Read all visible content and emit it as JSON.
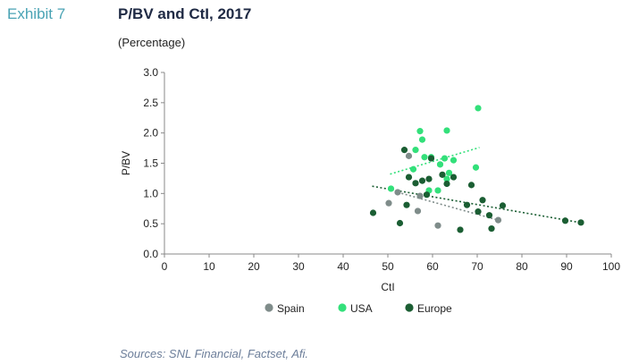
{
  "exhibit": "Exhibit 7",
  "title": "P/BV and CtI, 2017",
  "subtitle": "(Percentage)",
  "sources": "Sources: SNL Financial, Factset, Afi.",
  "chart_data": {
    "type": "scatter",
    "xlabel": "CtI",
    "ylabel": "P/BV",
    "xlim": [
      0,
      100
    ],
    "ylim": [
      0,
      3.0
    ],
    "xticks": [
      "0",
      "10",
      "20",
      "30",
      "40",
      "50",
      "60",
      "70",
      "80",
      "90",
      "100"
    ],
    "yticks": [
      "0.0",
      "0.5",
      "1.0",
      "1.5",
      "2.0",
      "2.5",
      "3.0"
    ],
    "grid": false,
    "legend_position": "bottom",
    "series": [
      {
        "name": "Spain",
        "color": "#7f8c8a",
        "points": [
          [
            50.2,
            0.84
          ],
          [
            52.2,
            1.02
          ],
          [
            54.7,
            1.62
          ],
          [
            56.7,
            0.71
          ],
          [
            57.2,
            0.96
          ],
          [
            61.2,
            0.47
          ],
          [
            74.7,
            0.56
          ]
        ],
        "trend": [
          [
            52.2,
            1.02
          ],
          [
            74.7,
            0.56
          ]
        ]
      },
      {
        "name": "USA",
        "color": "#33e07a",
        "points": [
          [
            50.7,
            1.08
          ],
          [
            55.7,
            1.4
          ],
          [
            56.2,
            1.72
          ],
          [
            57.2,
            2.03
          ],
          [
            57.7,
            1.89
          ],
          [
            58.2,
            1.6
          ],
          [
            59.2,
            1.05
          ],
          [
            59.7,
            1.6
          ],
          [
            61.2,
            1.05
          ],
          [
            61.7,
            1.48
          ],
          [
            62.7,
            1.58
          ],
          [
            63.2,
            2.04
          ],
          [
            63.2,
            1.24
          ],
          [
            63.7,
            1.34
          ],
          [
            64.7,
            1.55
          ],
          [
            69.7,
            1.43
          ],
          [
            70.2,
            2.41
          ]
        ],
        "trend": [
          [
            50.5,
            1.32
          ],
          [
            70.5,
            1.76
          ]
        ]
      },
      {
        "name": "Europe",
        "color": "#1b5e33",
        "points": [
          [
            46.7,
            0.68
          ],
          [
            52.7,
            0.51
          ],
          [
            53.7,
            1.72
          ],
          [
            54.2,
            0.81
          ],
          [
            54.7,
            1.27
          ],
          [
            56.2,
            1.17
          ],
          [
            57.7,
            1.21
          ],
          [
            58.7,
            0.98
          ],
          [
            59.2,
            1.24
          ],
          [
            59.7,
            1.58
          ],
          [
            62.2,
            1.31
          ],
          [
            63.2,
            1.16
          ],
          [
            64.7,
            1.27
          ],
          [
            66.2,
            0.4
          ],
          [
            67.7,
            0.81
          ],
          [
            68.7,
            1.14
          ],
          [
            70.2,
            0.7
          ],
          [
            71.2,
            0.89
          ],
          [
            72.7,
            0.64
          ],
          [
            73.2,
            0.42
          ],
          [
            75.7,
            0.8
          ],
          [
            89.7,
            0.55
          ],
          [
            93.2,
            0.52
          ]
        ],
        "trend": [
          [
            46.5,
            1.12
          ],
          [
            93.0,
            0.52
          ]
        ]
      }
    ]
  }
}
